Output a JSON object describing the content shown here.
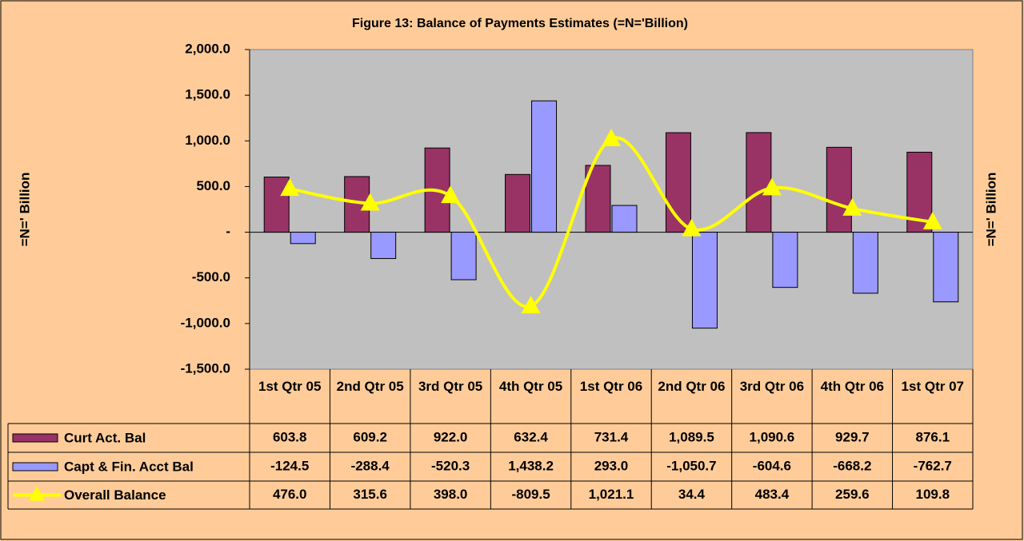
{
  "chart_data": {
    "type": "bar_line_table",
    "title": "Figure 13: Balance of Payments Estimates (=N='Billion)",
    "ylabel": "=N=' Billion",
    "y2label": "=N=' Billion",
    "categories": [
      "1st Qtr 05",
      "2nd Qtr 05",
      "3rd Qtr 05",
      "4th Qtr 05",
      "1st Qtr 06",
      "2nd Qtr 06",
      "3rd Qtr 06",
      "4th Qtr 06",
      "1st Qtr 07"
    ],
    "series": [
      {
        "name": "Curt Act. Bal",
        "type": "bar",
        "color": "#993366",
        "values": [
          603.8,
          609.2,
          922.0,
          632.4,
          731.4,
          1089.5,
          1090.6,
          929.7,
          876.1
        ],
        "value_labels": [
          "603.8",
          "609.2",
          "922.0",
          "632.4",
          "731.4",
          "1,089.5",
          "1,090.6",
          "929.7",
          "876.1"
        ]
      },
      {
        "name": "Capt & Fin. Acct Bal",
        "type": "bar",
        "color": "#9999FF",
        "values": [
          -124.5,
          -288.4,
          -520.3,
          1438.2,
          293.0,
          -1050.7,
          -604.6,
          -668.2,
          -762.7
        ],
        "value_labels": [
          "-124.5",
          "-288.4",
          "-520.3",
          "1,438.2",
          "293.0",
          "-1,050.7",
          "-604.6",
          "-668.2",
          "-762.7"
        ]
      },
      {
        "name": "Overall Balance",
        "type": "line",
        "color": "#FFFF00",
        "values": [
          476.0,
          315.6,
          398.0,
          -809.5,
          1021.1,
          34.4,
          483.4,
          259.6,
          109.8
        ],
        "value_labels": [
          "476.0",
          "315.6",
          "398.0",
          "-809.5",
          "1,021.1",
          "34.4",
          "483.4",
          "259.6",
          "109.8"
        ]
      }
    ],
    "ylim": [
      -1500,
      2000
    ],
    "yticks": [
      {
        "value": 2000,
        "label": "2,000.0"
      },
      {
        "value": 1500,
        "label": "1,500.0"
      },
      {
        "value": 1000,
        "label": "1,000.0"
      },
      {
        "value": 500,
        "label": "500.0"
      },
      {
        "value": 0,
        "label": "-"
      },
      {
        "value": -500,
        "label": "-500.0"
      },
      {
        "value": -1000,
        "label": "-1,000.0"
      },
      {
        "value": -1500,
        "label": "-1,500.0"
      }
    ],
    "plot_background": "#C0C0C0"
  }
}
